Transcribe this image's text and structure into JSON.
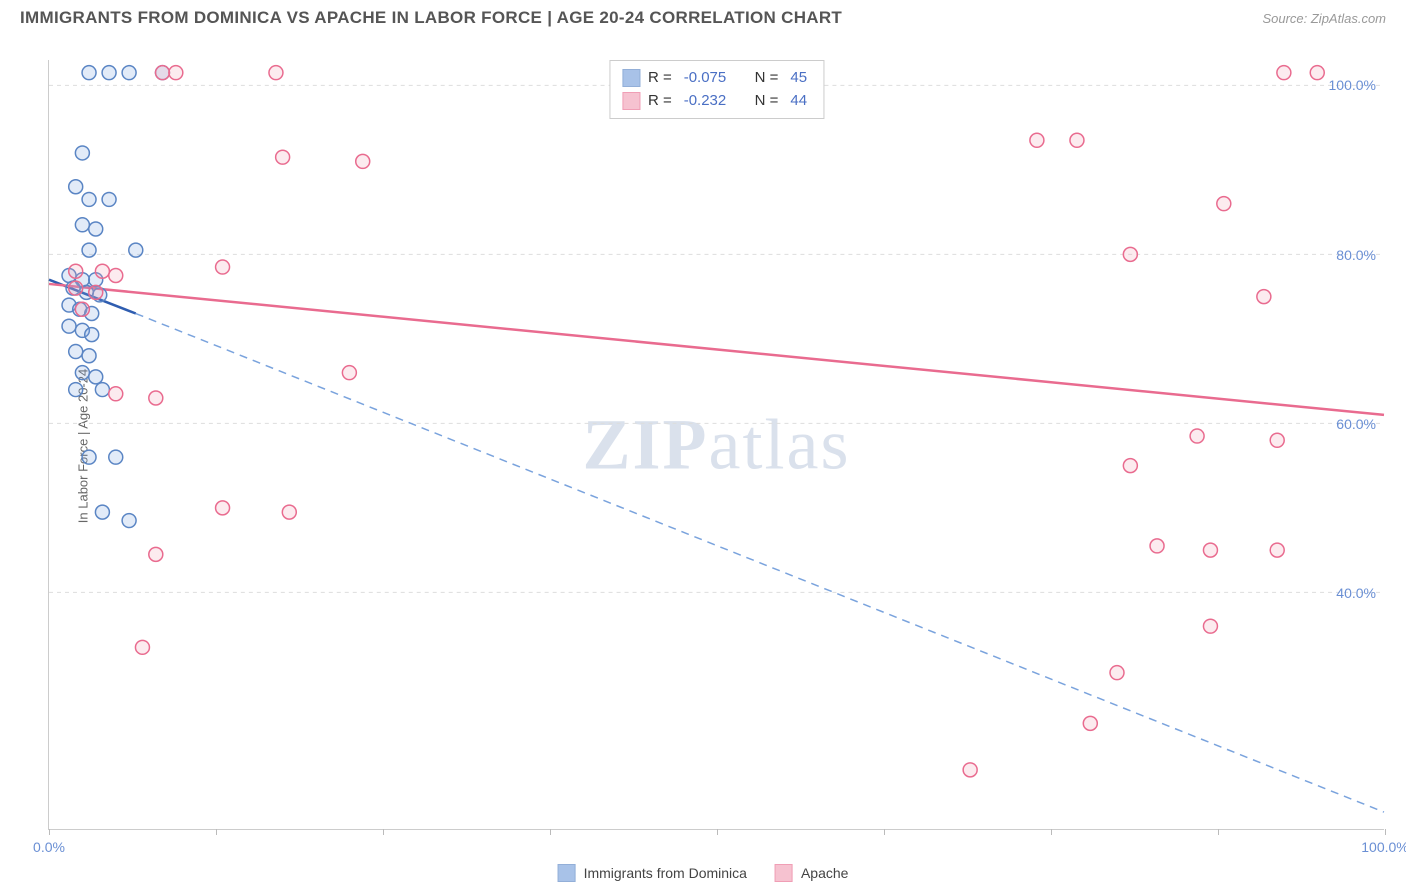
{
  "header": {
    "title": "IMMIGRANTS FROM DOMINICA VS APACHE IN LABOR FORCE | AGE 20-24 CORRELATION CHART",
    "source": "Source: ZipAtlas.com"
  },
  "chart": {
    "type": "scatter",
    "y_axis_label": "In Labor Force | Age 20-24",
    "xlim": [
      0,
      100
    ],
    "ylim": [
      12,
      103
    ],
    "x_ticks": [
      0,
      12.5,
      25,
      37.5,
      50,
      62.5,
      75,
      87.5,
      100
    ],
    "x_tick_labels": {
      "0": "0.0%",
      "100": "100.0%"
    },
    "y_ticks": [
      40,
      60,
      80,
      100
    ],
    "y_tick_labels": {
      "40": "40.0%",
      "60": "60.0%",
      "80": "80.0%",
      "100": "100.0%"
    },
    "background_color": "#ffffff",
    "grid_color": "#dddddd",
    "grid_dash": "4 4",
    "marker_radius": 7,
    "marker_stroke_width": 1.5,
    "marker_fill_opacity": 0.22,
    "series": [
      {
        "id": "dominica",
        "label": "Immigrants from Dominica",
        "color": "#7aa3dd",
        "stroke": "#5a85c4",
        "R": "-0.075",
        "N": "45",
        "trend": {
          "solid": {
            "x1": 0,
            "y1": 77,
            "x2": 6.5,
            "y2": 73,
            "color": "#2f5db0",
            "width": 2.5
          },
          "dashed": {
            "x1": 6.5,
            "y1": 73,
            "x2": 100,
            "y2": 14,
            "color": "#7aa3dd",
            "dash": "8 6",
            "width": 1.5
          }
        },
        "points": [
          [
            3,
            101.5
          ],
          [
            4.5,
            101.5
          ],
          [
            6,
            101.5
          ],
          [
            8.5,
            101.5
          ],
          [
            2.5,
            92
          ],
          [
            2,
            88
          ],
          [
            3,
            86.5
          ],
          [
            4.5,
            86.5
          ],
          [
            2.5,
            83.5
          ],
          [
            3.5,
            83
          ],
          [
            3,
            80.5
          ],
          [
            6.5,
            80.5
          ],
          [
            1.5,
            77.5
          ],
          [
            2.5,
            77
          ],
          [
            3.5,
            77
          ],
          [
            1.8,
            76
          ],
          [
            2.8,
            75.5
          ],
          [
            3.8,
            75.2
          ],
          [
            1.5,
            74
          ],
          [
            2.3,
            73.5
          ],
          [
            3.2,
            73
          ],
          [
            1.5,
            71.5
          ],
          [
            2.5,
            71
          ],
          [
            3.2,
            70.5
          ],
          [
            2,
            68.5
          ],
          [
            3,
            68
          ],
          [
            2.5,
            66
          ],
          [
            3.5,
            65.5
          ],
          [
            2,
            64
          ],
          [
            4,
            64
          ],
          [
            3,
            56
          ],
          [
            5,
            56
          ],
          [
            4,
            49.5
          ],
          [
            6,
            48.5
          ]
        ]
      },
      {
        "id": "apache",
        "label": "Apache",
        "color": "#f2a2b8",
        "stroke": "#e96b8f",
        "R": "-0.232",
        "N": "44",
        "trend": {
          "solid": {
            "x1": 0,
            "y1": 76.5,
            "x2": 100,
            "y2": 61,
            "color": "#e96b8f",
            "width": 2.5
          }
        },
        "points": [
          [
            8.5,
            101.5
          ],
          [
            9.5,
            101.5
          ],
          [
            17,
            101.5
          ],
          [
            92.5,
            101.5
          ],
          [
            95,
            101.5
          ],
          [
            74,
            93.5
          ],
          [
            77,
            93.5
          ],
          [
            17.5,
            91.5
          ],
          [
            23.5,
            91
          ],
          [
            88,
            86
          ],
          [
            81,
            80
          ],
          [
            2,
            78
          ],
          [
            4,
            78
          ],
          [
            5,
            77.5
          ],
          [
            13,
            78.5
          ],
          [
            2,
            76
          ],
          [
            3.5,
            75.5
          ],
          [
            2.5,
            73.5
          ],
          [
            91,
            75
          ],
          [
            22.5,
            66
          ],
          [
            5,
            63.5
          ],
          [
            8,
            63
          ],
          [
            86,
            58.5
          ],
          [
            92,
            58
          ],
          [
            81,
            55
          ],
          [
            13,
            50
          ],
          [
            18,
            49.5
          ],
          [
            8,
            44.5
          ],
          [
            83,
            45.5
          ],
          [
            87,
            45
          ],
          [
            92,
            45
          ],
          [
            87,
            36
          ],
          [
            7,
            33.5
          ],
          [
            80,
            30.5
          ],
          [
            78,
            24.5
          ],
          [
            69,
            19
          ]
        ]
      }
    ],
    "legend_top": {
      "rows": [
        {
          "swatch": "dominica",
          "r_label": "R =",
          "r_val": "-0.075",
          "n_label": "N =",
          "n_val": "45"
        },
        {
          "swatch": "apache",
          "r_label": "R =",
          "r_val": "-0.232",
          "n_label": "N =",
          "n_val": "44"
        }
      ]
    },
    "watermark": "ZIPatlas"
  }
}
